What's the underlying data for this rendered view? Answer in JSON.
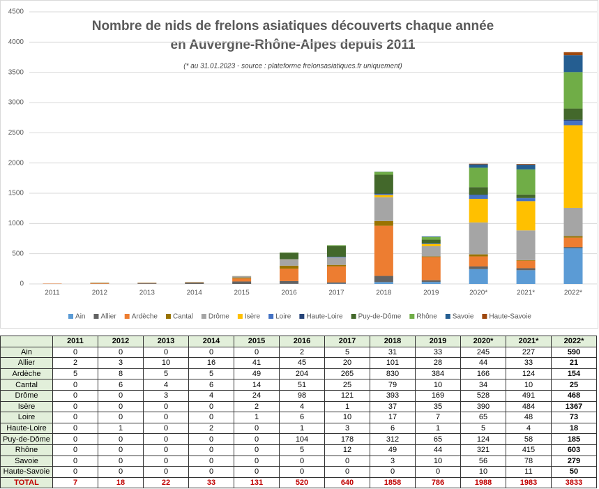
{
  "chart_data": {
    "type": "stacked_bar",
    "title": [
      "Nombre de nids de frelons asiatiques découverts chaque année",
      "en Auvergne-Rhône-Alpes depuis 2011"
    ],
    "subtitle": "(* au 31.01.2023 - source : plateforme frelonsasiatiques.fr uniquement)",
    "categories": [
      "2011",
      "2012",
      "2013",
      "2014",
      "2015",
      "2016",
      "2017",
      "2018",
      "2019",
      "2020*",
      "2021*",
      "2022*"
    ],
    "series": [
      {
        "name": "Ain",
        "color": "#5b9bd5",
        "values": [
          0,
          0,
          0,
          0,
          0,
          2,
          5,
          31,
          33,
          245,
          227,
          590
        ]
      },
      {
        "name": "Allier",
        "color": "#636363",
        "values": [
          2,
          3,
          10,
          16,
          41,
          45,
          20,
          101,
          28,
          44,
          33,
          21
        ]
      },
      {
        "name": "Ardèche",
        "color": "#ed7d31",
        "values": [
          5,
          8,
          5,
          5,
          49,
          204,
          265,
          830,
          384,
          166,
          124,
          154
        ]
      },
      {
        "name": "Cantal",
        "color": "#997300",
        "values": [
          0,
          6,
          4,
          6,
          14,
          51,
          25,
          79,
          10,
          34,
          10,
          25
        ]
      },
      {
        "name": "Drôme",
        "color": "#a5a5a5",
        "values": [
          0,
          0,
          3,
          4,
          24,
          98,
          121,
          393,
          169,
          528,
          491,
          468
        ]
      },
      {
        "name": "Isère",
        "color": "#ffc000",
        "values": [
          0,
          0,
          0,
          0,
          2,
          4,
          1,
          37,
          35,
          390,
          484,
          1367
        ]
      },
      {
        "name": "Loire",
        "color": "#4472c4",
        "values": [
          0,
          0,
          0,
          0,
          1,
          6,
          10,
          17,
          7,
          65,
          48,
          73
        ]
      },
      {
        "name": "Haute-Loire",
        "color": "#264478",
        "values": [
          0,
          1,
          0,
          2,
          0,
          1,
          3,
          6,
          1,
          5,
          4,
          18
        ]
      },
      {
        "name": "Puy-de-Dôme",
        "color": "#43682b",
        "values": [
          0,
          0,
          0,
          0,
          0,
          104,
          178,
          312,
          65,
          124,
          58,
          185
        ]
      },
      {
        "name": "Rhône",
        "color": "#70ad47",
        "values": [
          0,
          0,
          0,
          0,
          0,
          5,
          12,
          49,
          44,
          321,
          415,
          603
        ]
      },
      {
        "name": "Savoie",
        "color": "#255e91",
        "values": [
          0,
          0,
          0,
          0,
          0,
          0,
          0,
          3,
          10,
          56,
          78,
          279
        ]
      },
      {
        "name": "Haute-Savoie",
        "color": "#9e480e",
        "values": [
          0,
          0,
          0,
          0,
          0,
          0,
          0,
          0,
          0,
          10,
          11,
          50
        ]
      }
    ],
    "ylim": [
      0,
      4500
    ],
    "yticks": [
      0,
      500,
      1000,
      1500,
      2000,
      2500,
      3000,
      3500,
      4000,
      4500
    ],
    "grid": true,
    "legend": "bottom"
  },
  "table": {
    "total_label": "TOTAL",
    "totals": [
      7,
      18,
      22,
      33,
      131,
      520,
      640,
      1858,
      786,
      1988,
      1983,
      3833
    ]
  }
}
